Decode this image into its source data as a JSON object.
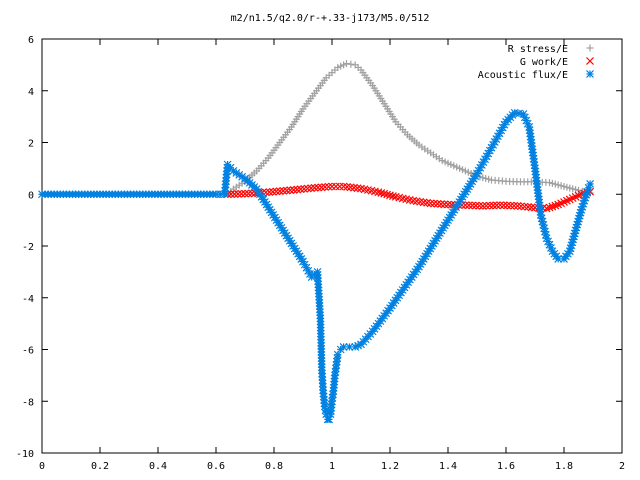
{
  "chart_data": {
    "type": "scatter",
    "title": "m2/n1.5/q2.0/r-+.33-j173/M5.0/512",
    "xlim": [
      0,
      2
    ],
    "ylim": [
      -10,
      6
    ],
    "x_ticks": [
      0,
      0.2,
      0.4,
      0.6,
      0.8,
      1,
      1.2,
      1.4,
      1.6,
      1.8,
      2
    ],
    "x_tick_labels": [
      "0",
      "0.2",
      "0.4",
      "0.6",
      "0.8",
      "1",
      "1.2",
      "1.4",
      "1.6",
      "1.8",
      "2"
    ],
    "y_ticks": [
      -10,
      -8,
      -6,
      -4,
      -2,
      0,
      2,
      4,
      6
    ],
    "y_tick_labels": [
      "-10",
      "-8",
      "-6",
      "-4",
      "-2",
      "0",
      "2",
      "4",
      "6"
    ],
    "grid": false,
    "legend_position": "top-right",
    "series": [
      {
        "name": "R stress/E",
        "marker": "+",
        "color": "#a0a0a0",
        "x": [
          0.0,
          0.2,
          0.4,
          0.6,
          0.64,
          0.66,
          0.7,
          0.74,
          0.78,
          0.82,
          0.86,
          0.9,
          0.94,
          0.98,
          1.0,
          1.02,
          1.05,
          1.08,
          1.1,
          1.14,
          1.18,
          1.22,
          1.26,
          1.3,
          1.34,
          1.38,
          1.42,
          1.46,
          1.5,
          1.55,
          1.6,
          1.65,
          1.7,
          1.75,
          1.8,
          1.85,
          1.89
        ],
        "y": [
          0.0,
          0.0,
          0.0,
          0.0,
          0.0,
          0.2,
          0.5,
          0.9,
          1.4,
          2.0,
          2.6,
          3.3,
          3.9,
          4.5,
          4.7,
          4.9,
          5.05,
          5.0,
          4.8,
          4.2,
          3.5,
          2.8,
          2.3,
          1.9,
          1.6,
          1.3,
          1.1,
          0.9,
          0.7,
          0.55,
          0.5,
          0.48,
          0.48,
          0.45,
          0.3,
          0.15,
          0.05
        ]
      },
      {
        "name": "G work/E",
        "marker": "x",
        "color": "#ff0000",
        "x": [
          0.64,
          0.7,
          0.76,
          0.82,
          0.88,
          0.94,
          1.0,
          1.04,
          1.1,
          1.16,
          1.22,
          1.28,
          1.34,
          1.4,
          1.46,
          1.52,
          1.58,
          1.64,
          1.7,
          1.74,
          1.78,
          1.82,
          1.86,
          1.89
        ],
        "y": [
          0.0,
          0.02,
          0.06,
          0.12,
          0.18,
          0.25,
          0.3,
          0.3,
          0.22,
          0.08,
          -0.1,
          -0.25,
          -0.35,
          -0.4,
          -0.42,
          -0.45,
          -0.42,
          -0.45,
          -0.52,
          -0.55,
          -0.4,
          -0.2,
          0.0,
          0.1
        ]
      },
      {
        "name": "Acoustic flux/E",
        "marker": "*",
        "color": "#0080e0",
        "x": [
          0.0,
          0.2,
          0.4,
          0.6,
          0.63,
          0.64,
          0.66,
          0.7,
          0.74,
          0.78,
          0.82,
          0.86,
          0.9,
          0.93,
          0.95,
          0.96,
          0.965,
          0.97,
          0.975,
          0.98,
          0.985,
          0.99,
          0.995,
          1.0,
          1.005,
          1.01,
          1.015,
          1.02,
          1.03,
          1.04,
          1.06,
          1.08,
          1.1,
          1.14,
          1.2,
          1.3,
          1.4,
          1.5,
          1.55,
          1.6,
          1.63,
          1.66,
          1.68,
          1.7,
          1.72,
          1.74,
          1.76,
          1.78,
          1.8,
          1.82,
          1.84,
          1.86,
          1.88,
          1.89
        ],
        "y": [
          0.0,
          0.0,
          0.0,
          0.0,
          0.0,
          1.15,
          0.9,
          0.6,
          0.2,
          -0.5,
          -1.2,
          -1.9,
          -2.6,
          -3.2,
          -3.0,
          -4.8,
          -6.8,
          -7.7,
          -8.2,
          -8.5,
          -8.7,
          -8.7,
          -8.5,
          -8.0,
          -7.6,
          -7.0,
          -6.6,
          -6.2,
          -6.0,
          -5.9,
          -5.9,
          -5.9,
          -5.8,
          -5.3,
          -4.4,
          -2.8,
          -1.0,
          0.8,
          1.8,
          2.8,
          3.15,
          3.1,
          2.6,
          1.0,
          -0.8,
          -1.7,
          -2.2,
          -2.5,
          -2.5,
          -2.2,
          -1.4,
          -0.6,
          0.1,
          0.4
        ]
      }
    ]
  }
}
